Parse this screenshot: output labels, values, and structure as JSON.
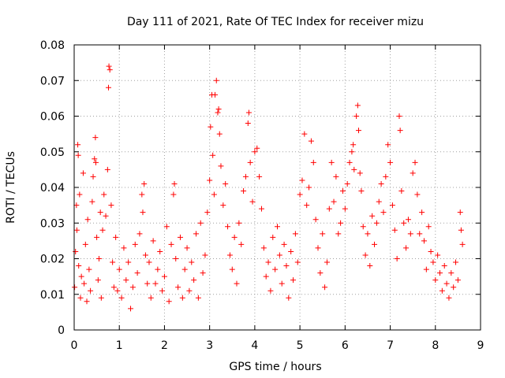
{
  "chart_data": {
    "type": "scatter",
    "title": "Day 111 of 2021, Rate Of TEC Index for receiver mizu",
    "xlabel": "GPS time / hours",
    "ylabel": "ROTI / TECUs",
    "xlim": [
      0,
      9
    ],
    "ylim": [
      0,
      0.08
    ],
    "x_ticks": [
      "0",
      "1",
      "2",
      "3",
      "4",
      "5",
      "6",
      "7",
      "8",
      "9"
    ],
    "y_ticks": [
      "0",
      "0.01",
      "0.02",
      "0.03",
      "0.04",
      "0.05",
      "0.06",
      "0.07",
      "0.08"
    ],
    "grid": true,
    "marker": "+",
    "color": "#ff0000",
    "series": [
      {
        "name": "ROTI",
        "points": [
          [
            0.01,
            0.012
          ],
          [
            0.03,
            0.022
          ],
          [
            0.05,
            0.035
          ],
          [
            0.06,
            0.028
          ],
          [
            0.08,
            0.052
          ],
          [
            0.09,
            0.049
          ],
          [
            0.1,
            0.018
          ],
          [
            0.12,
            0.038
          ],
          [
            0.14,
            0.009
          ],
          [
            0.16,
            0.015
          ],
          [
            0.2,
            0.044
          ],
          [
            0.22,
            0.013
          ],
          [
            0.25,
            0.024
          ],
          [
            0.28,
            0.008
          ],
          [
            0.3,
            0.031
          ],
          [
            0.33,
            0.017
          ],
          [
            0.36,
            0.011
          ],
          [
            0.4,
            0.036
          ],
          [
            0.42,
            0.043
          ],
          [
            0.45,
            0.048
          ],
          [
            0.47,
            0.054
          ],
          [
            0.48,
            0.047
          ],
          [
            0.5,
            0.026
          ],
          [
            0.53,
            0.014
          ],
          [
            0.55,
            0.02
          ],
          [
            0.58,
            0.033
          ],
          [
            0.6,
            0.009
          ],
          [
            0.63,
            0.028
          ],
          [
            0.66,
            0.038
          ],
          [
            0.7,
            0.032
          ],
          [
            0.74,
            0.045
          ],
          [
            0.76,
            0.068
          ],
          [
            0.77,
            0.074
          ],
          [
            0.79,
            0.073
          ],
          [
            0.82,
            0.035
          ],
          [
            0.85,
            0.019
          ],
          [
            0.88,
            0.012
          ],
          [
            0.92,
            0.026
          ],
          [
            0.96,
            0.011
          ],
          [
            1.0,
            0.017
          ],
          [
            1.05,
            0.009
          ],
          [
            1.1,
            0.023
          ],
          [
            1.15,
            0.014
          ],
          [
            1.2,
            0.019
          ],
          [
            1.25,
            0.006
          ],
          [
            1.3,
            0.012
          ],
          [
            1.35,
            0.024
          ],
          [
            1.4,
            0.016
          ],
          [
            1.45,
            0.027
          ],
          [
            1.5,
            0.038
          ],
          [
            1.52,
            0.033
          ],
          [
            1.55,
            0.041
          ],
          [
            1.58,
            0.021
          ],
          [
            1.62,
            0.013
          ],
          [
            1.66,
            0.019
          ],
          [
            1.7,
            0.009
          ],
          [
            1.75,
            0.025
          ],
          [
            1.8,
            0.013
          ],
          [
            1.85,
            0.017
          ],
          [
            1.9,
            0.022
          ],
          [
            1.95,
            0.011
          ],
          [
            2.0,
            0.015
          ],
          [
            2.05,
            0.029
          ],
          [
            2.1,
            0.008
          ],
          [
            2.15,
            0.024
          ],
          [
            2.2,
            0.038
          ],
          [
            2.22,
            0.041
          ],
          [
            2.25,
            0.02
          ],
          [
            2.3,
            0.012
          ],
          [
            2.35,
            0.026
          ],
          [
            2.4,
            0.009
          ],
          [
            2.45,
            0.017
          ],
          [
            2.5,
            0.023
          ],
          [
            2.55,
            0.011
          ],
          [
            2.6,
            0.019
          ],
          [
            2.65,
            0.014
          ],
          [
            2.7,
            0.027
          ],
          [
            2.75,
            0.009
          ],
          [
            2.8,
            0.03
          ],
          [
            2.85,
            0.016
          ],
          [
            2.9,
            0.021
          ],
          [
            2.95,
            0.033
          ],
          [
            3.0,
            0.042
          ],
          [
            3.02,
            0.057
          ],
          [
            3.05,
            0.066
          ],
          [
            3.07,
            0.049
          ],
          [
            3.1,
            0.038
          ],
          [
            3.12,
            0.066
          ],
          [
            3.15,
            0.07
          ],
          [
            3.18,
            0.061
          ],
          [
            3.2,
            0.062
          ],
          [
            3.22,
            0.055
          ],
          [
            3.25,
            0.046
          ],
          [
            3.3,
            0.035
          ],
          [
            3.35,
            0.041
          ],
          [
            3.4,
            0.029
          ],
          [
            3.45,
            0.021
          ],
          [
            3.5,
            0.017
          ],
          [
            3.55,
            0.026
          ],
          [
            3.6,
            0.013
          ],
          [
            3.65,
            0.03
          ],
          [
            3.7,
            0.024
          ],
          [
            3.75,
            0.039
          ],
          [
            3.8,
            0.043
          ],
          [
            3.85,
            0.058
          ],
          [
            3.87,
            0.061
          ],
          [
            3.9,
            0.047
          ],
          [
            3.95,
            0.036
          ],
          [
            4.0,
            0.05
          ],
          [
            4.05,
            0.051
          ],
          [
            4.1,
            0.043
          ],
          [
            4.15,
            0.034
          ],
          [
            4.2,
            0.023
          ],
          [
            4.25,
            0.015
          ],
          [
            4.3,
            0.019
          ],
          [
            4.35,
            0.011
          ],
          [
            4.4,
            0.026
          ],
          [
            4.45,
            0.017
          ],
          [
            4.5,
            0.029
          ],
          [
            4.55,
            0.021
          ],
          [
            4.6,
            0.013
          ],
          [
            4.65,
            0.024
          ],
          [
            4.7,
            0.018
          ],
          [
            4.75,
            0.009
          ],
          [
            4.8,
            0.022
          ],
          [
            4.85,
            0.014
          ],
          [
            4.9,
            0.027
          ],
          [
            4.95,
            0.019
          ],
          [
            5.0,
            0.038
          ],
          [
            5.05,
            0.042
          ],
          [
            5.1,
            0.055
          ],
          [
            5.15,
            0.035
          ],
          [
            5.2,
            0.04
          ],
          [
            5.25,
            0.053
          ],
          [
            5.3,
            0.047
          ],
          [
            5.35,
            0.031
          ],
          [
            5.4,
            0.023
          ],
          [
            5.45,
            0.016
          ],
          [
            5.5,
            0.027
          ],
          [
            5.55,
            0.012
          ],
          [
            5.6,
            0.019
          ],
          [
            5.65,
            0.034
          ],
          [
            5.7,
            0.047
          ],
          [
            5.75,
            0.036
          ],
          [
            5.8,
            0.043
          ],
          [
            5.85,
            0.027
          ],
          [
            5.9,
            0.03
          ],
          [
            5.95,
            0.039
          ],
          [
            6.0,
            0.034
          ],
          [
            6.05,
            0.041
          ],
          [
            6.1,
            0.047
          ],
          [
            6.15,
            0.05
          ],
          [
            6.18,
            0.052
          ],
          [
            6.2,
            0.045
          ],
          [
            6.25,
            0.06
          ],
          [
            6.28,
            0.063
          ],
          [
            6.3,
            0.056
          ],
          [
            6.33,
            0.044
          ],
          [
            6.36,
            0.039
          ],
          [
            6.4,
            0.029
          ],
          [
            6.45,
            0.021
          ],
          [
            6.5,
            0.027
          ],
          [
            6.55,
            0.018
          ],
          [
            6.6,
            0.032
          ],
          [
            6.65,
            0.024
          ],
          [
            6.7,
            0.03
          ],
          [
            6.75,
            0.036
          ],
          [
            6.8,
            0.041
          ],
          [
            6.85,
            0.033
          ],
          [
            6.9,
            0.043
          ],
          [
            6.95,
            0.052
          ],
          [
            7.0,
            0.047
          ],
          [
            7.05,
            0.035
          ],
          [
            7.1,
            0.028
          ],
          [
            7.15,
            0.02
          ],
          [
            7.2,
            0.06
          ],
          [
            7.22,
            0.056
          ],
          [
            7.25,
            0.039
          ],
          [
            7.3,
            0.03
          ],
          [
            7.35,
            0.023
          ],
          [
            7.4,
            0.031
          ],
          [
            7.45,
            0.027
          ],
          [
            7.5,
            0.044
          ],
          [
            7.55,
            0.047
          ],
          [
            7.6,
            0.038
          ],
          [
            7.65,
            0.027
          ],
          [
            7.7,
            0.033
          ],
          [
            7.75,
            0.025
          ],
          [
            7.8,
            0.017
          ],
          [
            7.85,
            0.029
          ],
          [
            7.9,
            0.022
          ],
          [
            7.95,
            0.019
          ],
          [
            8.0,
            0.014
          ],
          [
            8.05,
            0.021
          ],
          [
            8.1,
            0.016
          ],
          [
            8.15,
            0.011
          ],
          [
            8.2,
            0.018
          ],
          [
            8.25,
            0.013
          ],
          [
            8.3,
            0.009
          ],
          [
            8.35,
            0.016
          ],
          [
            8.4,
            0.012
          ],
          [
            8.45,
            0.019
          ],
          [
            8.5,
            0.014
          ],
          [
            8.55,
            0.033
          ],
          [
            8.57,
            0.028
          ],
          [
            8.6,
            0.024
          ]
        ]
      }
    ]
  }
}
